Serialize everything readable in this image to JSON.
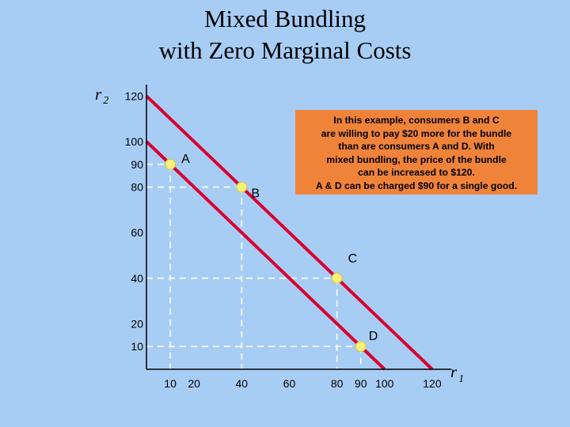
{
  "title": {
    "line1": "Mixed Bundling",
    "line2": "with Zero Marginal Costs"
  },
  "callout": {
    "lines": [
      "In this example, consumers B and C",
      "are willing to pay $20 more for the bundle",
      "than are consumers A  and D. With",
      "mixed bundling, the price of the bundle",
      "can be increased to $120.",
      "A & D can be charged $90 for a single good."
    ]
  },
  "chart_data": {
    "type": "scatter",
    "xlabel": "r",
    "xlabel_sub": "1",
    "ylabel": "r",
    "ylabel_sub": "2",
    "xlim": [
      0,
      128
    ],
    "ylim": [
      0,
      125
    ],
    "x_ticks": [
      {
        "value": 10,
        "label": "10"
      },
      {
        "value": 20,
        "label": "20"
      },
      {
        "value": 40,
        "label": "40"
      },
      {
        "value": 60,
        "label": "60"
      },
      {
        "value": 80,
        "label": "80"
      },
      {
        "value": 90,
        "label": "90"
      },
      {
        "value": 100,
        "label": "100"
      },
      {
        "value": 120,
        "label": "120"
      }
    ],
    "y_ticks": [
      {
        "value": 10,
        "label": "10"
      },
      {
        "value": 20,
        "label": "20"
      },
      {
        "value": 40,
        "label": "40"
      },
      {
        "value": 60,
        "label": "60"
      },
      {
        "value": 80,
        "label": "80"
      },
      {
        "value": 90,
        "label": "90"
      },
      {
        "value": 100,
        "label": "100"
      },
      {
        "value": 120,
        "label": "120"
      }
    ],
    "lines": [
      {
        "x1": 0,
        "y1": 100,
        "x2": 100,
        "y2": 0
      },
      {
        "x1": 0,
        "y1": 120,
        "x2": 120,
        "y2": 0
      }
    ],
    "points": [
      {
        "label": "A",
        "x": 10,
        "y": 90
      },
      {
        "label": "B",
        "x": 40,
        "y": 80
      },
      {
        "label": "C",
        "x": 80,
        "y": 40
      },
      {
        "label": "D",
        "x": 90,
        "y": 10
      }
    ],
    "line_color": "#d9002f",
    "point_color": "#f7f079",
    "dash_color": "#ffffff",
    "callout_color": "#f0833a"
  }
}
